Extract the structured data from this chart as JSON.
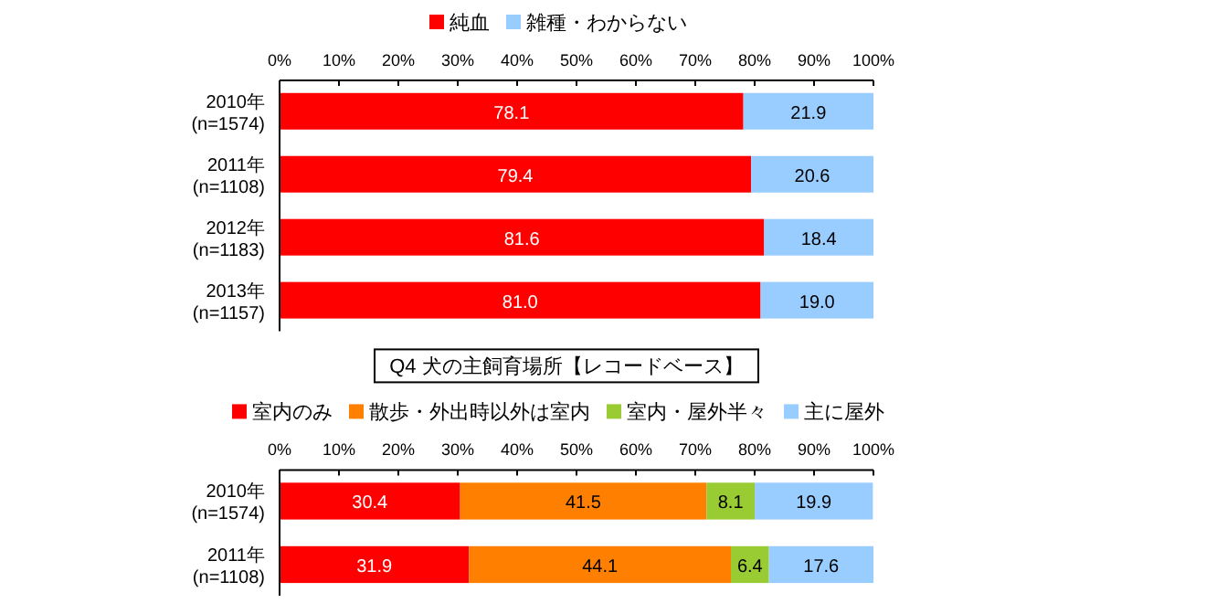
{
  "chart_data": [
    {
      "type": "bar",
      "orientation": "horizontal",
      "stacked": true,
      "categories": [
        "2010年\n(n=1574)",
        "2011年\n(n=1108)",
        "2012年\n(n=1183)",
        "2013年\n(n=1157)"
      ],
      "series": [
        {
          "name": "純血",
          "color": "#ff0000",
          "values": [
            78.1,
            79.4,
            81.6,
            81.0
          ],
          "value_labels": [
            "78.1",
            "79.4",
            "81.6",
            "81.0"
          ]
        },
        {
          "name": "雑種・わからない",
          "color": "#99ccff",
          "values": [
            21.9,
            20.6,
            18.4,
            19.0
          ],
          "value_labels": [
            "21.9",
            "20.6",
            "18.4",
            "19.0"
          ]
        }
      ],
      "xlim": [
        0,
        100
      ],
      "xticks": [
        {
          "value": 0,
          "label": "0%"
        },
        {
          "value": 10,
          "label": "10%"
        },
        {
          "value": 20,
          "label": "20%"
        },
        {
          "value": 30,
          "label": "30%"
        },
        {
          "value": 40,
          "label": "40%"
        },
        {
          "value": 50,
          "label": "50%"
        },
        {
          "value": 60,
          "label": "60%"
        },
        {
          "value": 70,
          "label": "70%"
        },
        {
          "value": 80,
          "label": "80%"
        },
        {
          "value": 90,
          "label": "90%"
        },
        {
          "value": 100,
          "label": "100%"
        }
      ],
      "legend": "top",
      "grid": false
    },
    {
      "type": "bar",
      "orientation": "horizontal",
      "stacked": true,
      "title": "Q4  犬の主飼育場所【レコードベース】",
      "categories": [
        "2010年\n(n=1574)",
        "2011年\n(n=1108)"
      ],
      "series": [
        {
          "name": "室内のみ",
          "color": "#ff0000",
          "values": [
            30.4,
            31.9
          ],
          "value_labels": [
            "30.4",
            "31.9"
          ]
        },
        {
          "name": "散歩・外出時以外は室内",
          "color": "#ff8000",
          "values": [
            41.5,
            44.1
          ],
          "value_labels": [
            "41.5",
            "44.1"
          ]
        },
        {
          "name": "室内・屋外半々",
          "color": "#99cc33",
          "values": [
            8.1,
            6.4
          ],
          "value_labels": [
            "8.1",
            "6.4"
          ]
        },
        {
          "name": "主に屋外",
          "color": "#99ccff",
          "values": [
            19.9,
            17.6
          ],
          "value_labels": [
            "19.9",
            "17.6"
          ]
        }
      ],
      "xlim": [
        0,
        100
      ],
      "xticks": [
        {
          "value": 0,
          "label": "0%"
        },
        {
          "value": 10,
          "label": "10%"
        },
        {
          "value": 20,
          "label": "20%"
        },
        {
          "value": 30,
          "label": "30%"
        },
        {
          "value": 40,
          "label": "40%"
        },
        {
          "value": 50,
          "label": "50%"
        },
        {
          "value": 60,
          "label": "60%"
        },
        {
          "value": 70,
          "label": "70%"
        },
        {
          "value": 80,
          "label": "80%"
        },
        {
          "value": 90,
          "label": "90%"
        },
        {
          "value": 100,
          "label": "100%"
        }
      ],
      "legend": "top",
      "grid": false
    }
  ]
}
